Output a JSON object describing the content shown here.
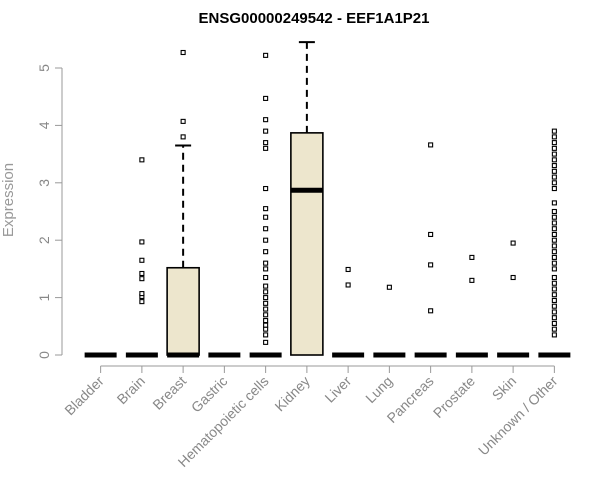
{
  "chart_data": {
    "type": "box",
    "title": "ENSG00000249542 - EEF1A1P21",
    "xlabel": "",
    "ylabel": "Expression",
    "ylim": [
      0,
      5.5
    ],
    "yticks": [
      0,
      1,
      2,
      3,
      4,
      5
    ],
    "grid": false,
    "box_color": "#ede6cd",
    "categories": [
      "Bladder",
      "Brain",
      "Breast",
      "Gastric",
      "Hematopoietic cells",
      "Kidney",
      "Liver",
      "Lung",
      "Pancreas",
      "Prostate",
      "Skin",
      "Unknown / Other"
    ],
    "boxes": [
      {
        "q1": 0,
        "median": 0,
        "q3": 0,
        "whisker_low": 0,
        "whisker_high": 0,
        "outliers": []
      },
      {
        "q1": 0,
        "median": 0,
        "q3": 0,
        "whisker_low": 0,
        "whisker_high": 0,
        "outliers": [
          0.93,
          1.02,
          1.07,
          1.33,
          1.42,
          1.65,
          1.97,
          3.4
        ]
      },
      {
        "q1": 0,
        "median": 0,
        "q3": 1.52,
        "whisker_low": 0,
        "whisker_high": 3.65,
        "outliers": [
          3.8,
          4.07,
          5.27
        ]
      },
      {
        "q1": 0,
        "median": 0,
        "q3": 0,
        "whisker_low": 0,
        "whisker_high": 0,
        "outliers": []
      },
      {
        "q1": 0,
        "median": 0,
        "q3": 0,
        "whisker_low": 0,
        "whisker_high": 0,
        "outliers": [
          0.22,
          0.35,
          0.45,
          0.52,
          0.6,
          0.7,
          0.8,
          0.9,
          1.0,
          1.1,
          1.2,
          1.35,
          1.5,
          1.6,
          1.8,
          2.0,
          2.2,
          2.4,
          2.55,
          2.9,
          3.6,
          3.7,
          3.9,
          4.1,
          4.47,
          5.22
        ]
      },
      {
        "q1": 0,
        "median": 2.87,
        "q3": 3.87,
        "whisker_low": 0,
        "whisker_high": 5.45,
        "outliers": []
      },
      {
        "q1": 0,
        "median": 0,
        "q3": 0,
        "whisker_low": 0,
        "whisker_high": 0,
        "outliers": [
          1.22,
          1.49
        ]
      },
      {
        "q1": 0,
        "median": 0,
        "q3": 0,
        "whisker_low": 0,
        "whisker_high": 0,
        "outliers": [
          1.18
        ]
      },
      {
        "q1": 0,
        "median": 0,
        "q3": 0,
        "whisker_low": 0,
        "whisker_high": 0,
        "outliers": [
          0.77,
          1.57,
          2.1,
          3.66
        ]
      },
      {
        "q1": 0,
        "median": 0,
        "q3": 0,
        "whisker_low": 0,
        "whisker_high": 0,
        "outliers": [
          1.3,
          1.7
        ]
      },
      {
        "q1": 0,
        "median": 0,
        "q3": 0,
        "whisker_low": 0,
        "whisker_high": 0,
        "outliers": [
          1.35,
          1.95
        ]
      },
      {
        "q1": 0,
        "median": 0,
        "q3": 0,
        "whisker_low": 0,
        "whisker_high": 0,
        "outliers": [
          0.35,
          0.45,
          0.55,
          0.65,
          0.75,
          0.85,
          0.95,
          1.05,
          1.15,
          1.25,
          1.35,
          1.5,
          1.6,
          1.7,
          1.8,
          1.9,
          2.0,
          2.1,
          2.2,
          2.3,
          2.4,
          2.5,
          2.65,
          2.9,
          3.0,
          3.1,
          3.2,
          3.3,
          3.4,
          3.5,
          3.6,
          3.7,
          3.8,
          3.9
        ]
      }
    ]
  }
}
